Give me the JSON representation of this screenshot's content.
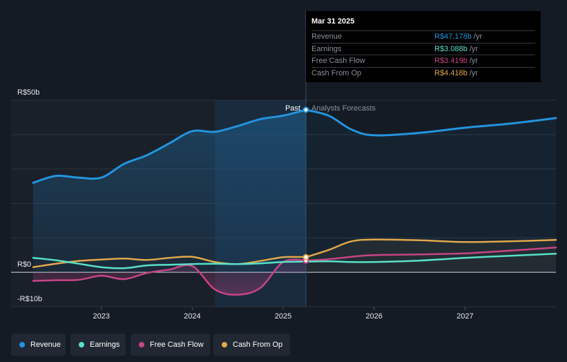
{
  "colors": {
    "background": "#151b24",
    "revenue": "#2394df",
    "earnings": "#58e1c9",
    "free_cash_flow": "#c74486",
    "cash_from_op": "#e2a84b"
  },
  "tooltip": {
    "date": "Mar 31 2025",
    "rows": [
      {
        "label": "Revenue",
        "value": "R$47.178b",
        "unit": "/yr",
        "color": "#2394df"
      },
      {
        "label": "Earnings",
        "value": "R$3.088b",
        "unit": "/yr",
        "color": "#58e1c9"
      },
      {
        "label": "Free Cash Flow",
        "value": "R$3.419b",
        "unit": "/yr",
        "color": "#c74486"
      },
      {
        "label": "Cash From Op",
        "value": "R$4.418b",
        "unit": "/yr",
        "color": "#e2a84b"
      }
    ]
  },
  "legend": {
    "items": [
      {
        "label": "Revenue",
        "color": "#2394df"
      },
      {
        "label": "Earnings",
        "color": "#58e1c9"
      },
      {
        "label": "Free Cash Flow",
        "color": "#c74486"
      },
      {
        "label": "Cash From Op",
        "color": "#e2a84b"
      }
    ]
  },
  "chart_data": {
    "type": "line",
    "title": "",
    "x_unit": "year",
    "xlim": [
      2022.25,
      2028.0
    ],
    "ylim": [
      -10,
      50
    ],
    "y_tick_labels": [
      {
        "value": 50,
        "label": "R$50b"
      },
      {
        "value": 0,
        "label": "R$0"
      },
      {
        "value": -10,
        "label": "-R$10b"
      }
    ],
    "x_tick_labels": [
      {
        "value": 2023,
        "label": "2023"
      },
      {
        "value": 2024,
        "label": "2024"
      },
      {
        "value": 2025,
        "label": "2025"
      },
      {
        "value": 2026,
        "label": "2026"
      },
      {
        "value": 2027,
        "label": "2027"
      }
    ],
    "divider_x": 2025.25,
    "past_label": "Past",
    "forecast_label": "Analysts Forecasts",
    "shaded_region_x": [
      2024.25,
      2025.25
    ],
    "series": [
      {
        "name": "Revenue",
        "key": "revenue",
        "past": [
          [
            2022.25,
            26
          ],
          [
            2022.5,
            28
          ],
          [
            2022.75,
            27.5
          ],
          [
            2023.0,
            27.5
          ],
          [
            2023.25,
            31.5
          ],
          [
            2023.5,
            34
          ],
          [
            2023.75,
            37.5
          ],
          [
            2024.0,
            41
          ],
          [
            2024.25,
            40.8
          ],
          [
            2024.5,
            42.5
          ],
          [
            2024.75,
            44.5
          ],
          [
            2025.0,
            45.5
          ],
          [
            2025.25,
            47.2
          ]
        ],
        "forecast": [
          [
            2025.25,
            47.2
          ],
          [
            2025.5,
            45.5
          ],
          [
            2025.75,
            41.5
          ],
          [
            2026.0,
            39.8
          ],
          [
            2026.5,
            40.5
          ],
          [
            2027.0,
            42
          ],
          [
            2027.5,
            43.2
          ],
          [
            2028.0,
            44.8
          ]
        ],
        "marker": [
          2025.25,
          47.2
        ]
      },
      {
        "name": "Earnings",
        "key": "earnings",
        "past": [
          [
            2022.25,
            4.2
          ],
          [
            2022.5,
            3.5
          ],
          [
            2022.75,
            2.5
          ],
          [
            2023.0,
            1.5
          ],
          [
            2023.25,
            1.2
          ],
          [
            2023.5,
            2.0
          ],
          [
            2023.75,
            2.2
          ],
          [
            2024.0,
            2.4
          ],
          [
            2024.25,
            2.5
          ],
          [
            2024.5,
            2.4
          ],
          [
            2024.75,
            2.6
          ],
          [
            2025.0,
            3.0
          ],
          [
            2025.25,
            3.1
          ]
        ],
        "forecast": [
          [
            2025.25,
            3.1
          ],
          [
            2025.5,
            3.2
          ],
          [
            2025.75,
            3.0
          ],
          [
            2026.0,
            3.0
          ],
          [
            2026.5,
            3.4
          ],
          [
            2027.0,
            4.2
          ],
          [
            2027.5,
            4.8
          ],
          [
            2028.0,
            5.4
          ]
        ],
        "marker": null
      },
      {
        "name": "Free Cash Flow",
        "key": "free_cash_flow",
        "past": [
          [
            2022.25,
            -2.5
          ],
          [
            2022.5,
            -2.3
          ],
          [
            2022.75,
            -2.2
          ],
          [
            2023.0,
            -1.0
          ],
          [
            2023.25,
            -2.0
          ],
          [
            2023.5,
            -0.2
          ],
          [
            2023.75,
            0.8
          ],
          [
            2024.0,
            1.8
          ],
          [
            2024.25,
            -5.0
          ],
          [
            2024.5,
            -6.5
          ],
          [
            2024.75,
            -4.5
          ],
          [
            2025.0,
            3.0
          ],
          [
            2025.25,
            3.4
          ]
        ],
        "forecast": [
          [
            2025.25,
            3.4
          ],
          [
            2025.5,
            3.8
          ],
          [
            2025.75,
            4.5
          ],
          [
            2026.0,
            5.0
          ],
          [
            2026.5,
            5.2
          ],
          [
            2027.0,
            5.5
          ],
          [
            2027.5,
            6.3
          ],
          [
            2028.0,
            7.2
          ]
        ],
        "marker": [
          2025.25,
          3.4
        ]
      },
      {
        "name": "Cash From Op",
        "key": "cash_from_op",
        "past": [
          [
            2022.25,
            1.5
          ],
          [
            2022.5,
            2.5
          ],
          [
            2022.75,
            3.3
          ],
          [
            2023.0,
            3.7
          ],
          [
            2023.25,
            4.0
          ],
          [
            2023.5,
            3.6
          ],
          [
            2023.75,
            4.2
          ],
          [
            2024.0,
            4.5
          ],
          [
            2024.25,
            3.0
          ],
          [
            2024.5,
            2.4
          ],
          [
            2024.75,
            3.3
          ],
          [
            2025.0,
            4.4
          ],
          [
            2025.25,
            4.4
          ]
        ],
        "forecast": [
          [
            2025.25,
            4.4
          ],
          [
            2025.5,
            6.5
          ],
          [
            2025.75,
            9.0
          ],
          [
            2026.0,
            9.5
          ],
          [
            2026.5,
            9.3
          ],
          [
            2027.0,
            8.8
          ],
          [
            2027.5,
            9.0
          ],
          [
            2028.0,
            9.4
          ]
        ],
        "marker": [
          2025.25,
          4.4
        ]
      }
    ]
  }
}
